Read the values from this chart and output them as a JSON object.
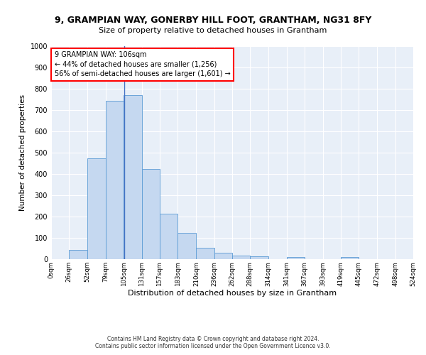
{
  "title_line1": "9, GRAMPIAN WAY, GONERBY HILL FOOT, GRANTHAM, NG31 8FY",
  "title_line2": "Size of property relative to detached houses in Grantham",
  "xlabel": "Distribution of detached houses by size in Grantham",
  "ylabel": "Number of detached properties",
  "bin_labels": [
    "0sqm",
    "26sqm",
    "52sqm",
    "79sqm",
    "105sqm",
    "131sqm",
    "157sqm",
    "183sqm",
    "210sqm",
    "236sqm",
    "262sqm",
    "288sqm",
    "314sqm",
    "341sqm",
    "367sqm",
    "393sqm",
    "419sqm",
    "445sqm",
    "472sqm",
    "498sqm",
    "524sqm"
  ],
  "bin_edges": [
    0,
    26,
    52,
    79,
    105,
    131,
    157,
    183,
    210,
    236,
    262,
    288,
    314,
    341,
    367,
    393,
    419,
    445,
    472,
    498,
    524
  ],
  "bar_heights": [
    0,
    45,
    475,
    745,
    770,
    425,
    215,
    125,
    52,
    30,
    17,
    12,
    0,
    10,
    0,
    0,
    10,
    0,
    0,
    0
  ],
  "bar_color": "#c5d8f0",
  "bar_edge_color": "#5b9bd5",
  "vline_x": 106,
  "vline_color": "#4472c4",
  "annotation_line1": "9 GRAMPIAN WAY: 106sqm",
  "annotation_line2": "← 44% of detached houses are smaller (1,256)",
  "annotation_line3": "56% of semi-detached houses are larger (1,601) →",
  "annotation_box_color": "white",
  "annotation_box_edge_color": "red",
  "ylim": [
    0,
    1000
  ],
  "yticks": [
    0,
    100,
    200,
    300,
    400,
    500,
    600,
    700,
    800,
    900,
    1000
  ],
  "background_color": "#e8eff8",
  "grid_color": "white",
  "footer_line1": "Contains HM Land Registry data © Crown copyright and database right 2024.",
  "footer_line2": "Contains public sector information licensed under the Open Government Licence v3.0."
}
